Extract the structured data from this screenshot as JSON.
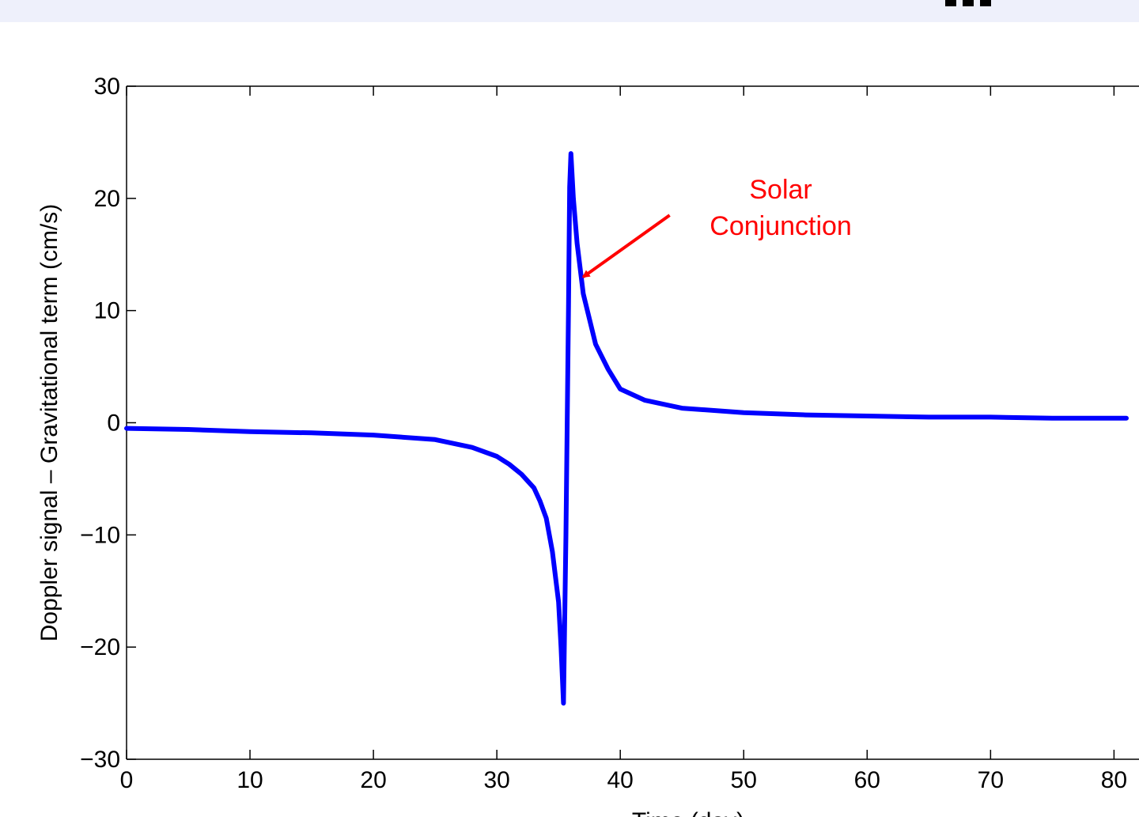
{
  "chart_data": {
    "type": "line",
    "title": "",
    "xlabel": "Time (day)",
    "ylabel": "Doppler signal – Gravitational term (cm/s)",
    "xlim": [
      0,
      81
    ],
    "ylim": [
      -30,
      30
    ],
    "x_ticks": [
      0,
      10,
      20,
      30,
      40,
      50,
      60,
      70,
      80
    ],
    "y_ticks": [
      -30,
      -20,
      -10,
      0,
      10,
      20,
      30
    ],
    "x_tick_labels": [
      "0",
      "10",
      "20",
      "30",
      "40",
      "50",
      "60",
      "70",
      "80"
    ],
    "y_tick_labels": [
      "−30",
      "−20",
      "−10",
      "0",
      "10",
      "20",
      "30"
    ],
    "grid": false,
    "series": [
      {
        "color": "#0000ff",
        "x": [
          0,
          5,
          10,
          15,
          20,
          25,
          28,
          30,
          31,
          32,
          33,
          33.5,
          34,
          34.5,
          35,
          35.2,
          35.4,
          35.6,
          35.7,
          35.8,
          35.9,
          36,
          36.2,
          36.5,
          37,
          38,
          39,
          40,
          42,
          45,
          50,
          55,
          60,
          65,
          70,
          75,
          81
        ],
        "y": [
          -0.5,
          -0.6,
          -0.8,
          -0.9,
          -1.1,
          -1.5,
          -2.2,
          -3.0,
          -3.7,
          -4.6,
          -5.8,
          -7.0,
          -8.5,
          -11.5,
          -16.0,
          -20.0,
          -25.0,
          -10.0,
          0.0,
          10.0,
          21.0,
          24.0,
          20.0,
          16.0,
          11.5,
          7.0,
          4.8,
          3.0,
          2.0,
          1.3,
          0.9,
          0.7,
          0.6,
          0.5,
          0.5,
          0.4,
          0.4
        ]
      }
    ],
    "annotations": [
      {
        "text_lines": [
          "Solar",
          "Conjunction"
        ],
        "color": "#ff0000",
        "arrow_to": [
          37.0,
          13.0
        ],
        "arrow_from": [
          44.0,
          18.5
        ],
        "text_at": [
          53.0,
          20.0
        ]
      }
    ]
  },
  "colors": {
    "series": "#0000ff",
    "annotation": "#ff0000",
    "top_band": "#eef0fb"
  }
}
